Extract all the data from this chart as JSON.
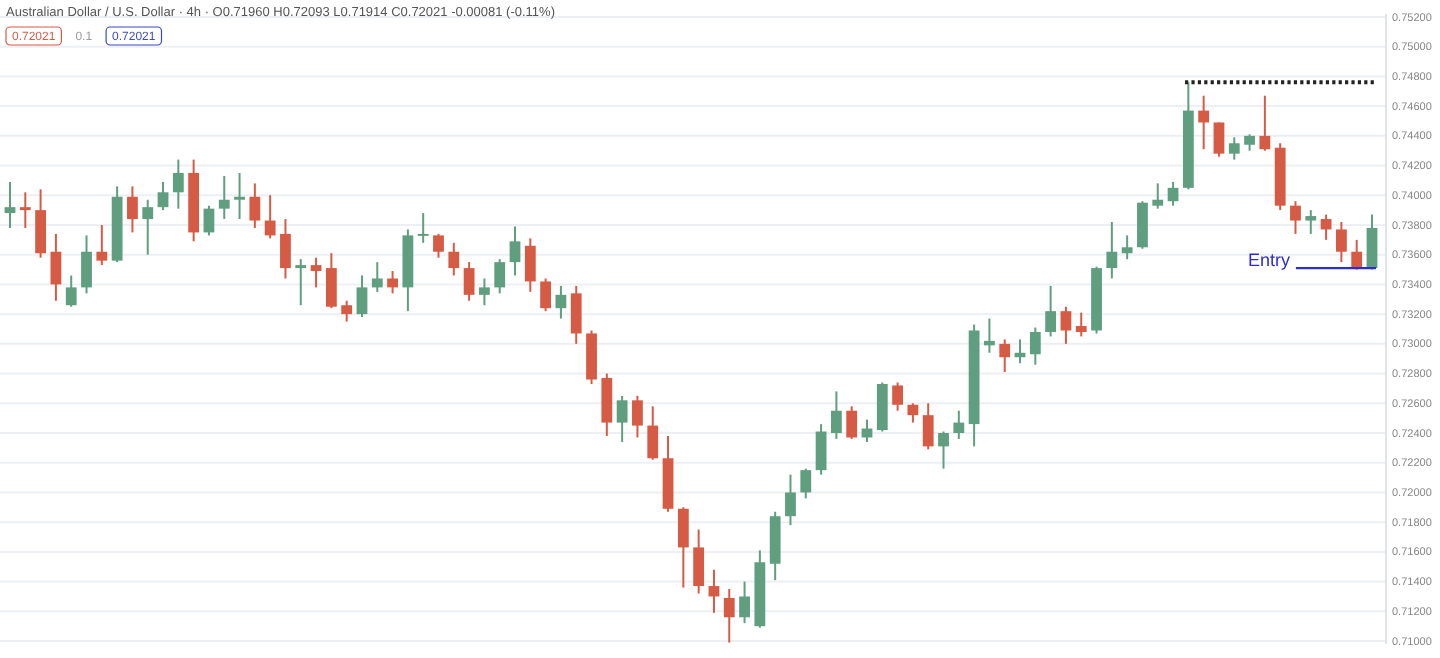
{
  "chart_data": {
    "type": "candlestick",
    "title": "Australian Dollar / U.S. Dollar · 4h · O0.71960 H0.72093 L0.71914 C0.72021 -0.00081 (-0.11%)",
    "annotations": [
      "0.72021",
      "0.1",
      "0.72021"
    ],
    "categories": [
      null,
      null,
      null,
      null,
      null,
      null,
      null,
      null,
      null,
      null,
      null,
      null,
      null,
      null,
      null,
      null,
      null,
      null,
      null,
      null,
      null,
      null,
      null,
      null,
      null,
      null,
      null,
      null,
      null,
      null,
      null,
      null,
      null,
      null,
      null,
      null,
      null,
      null,
      null,
      null,
      null,
      null,
      null,
      null,
      null,
      null,
      null,
      null,
      null,
      null,
      null,
      null,
      null,
      null,
      null,
      null,
      null,
      null,
      null,
      null,
      null,
      null,
      null,
      null,
      null,
      null,
      null,
      null,
      null,
      null,
      null,
      null,
      null,
      null,
      null,
      null,
      null,
      null,
      null,
      null,
      null,
      null,
      null,
      null,
      null,
      null,
      null,
      null,
      null,
      null
    ],
    "ohlc": [
      [
        0.7388,
        0.7409,
        0.7378,
        0.7392
      ],
      [
        0.7392,
        0.7402,
        0.7378,
        0.739
      ],
      [
        0.739,
        0.7404,
        0.7358,
        0.7361
      ],
      [
        0.7362,
        0.7374,
        0.7329,
        0.734
      ],
      [
        0.7326,
        0.7346,
        0.7325,
        0.7338
      ],
      [
        0.7338,
        0.7373,
        0.7334,
        0.7362
      ],
      [
        0.7362,
        0.738,
        0.7353,
        0.7356
      ],
      [
        0.7356,
        0.7406,
        0.7355,
        0.7399
      ],
      [
        0.7399,
        0.7406,
        0.7375,
        0.7384
      ],
      [
        0.7384,
        0.7397,
        0.736,
        0.7392
      ],
      [
        0.7392,
        0.7409,
        0.739,
        0.7402
      ],
      [
        0.7402,
        0.7424,
        0.7391,
        0.7415
      ],
      [
        0.7415,
        0.7424,
        0.7369,
        0.7375
      ],
      [
        0.7375,
        0.7393,
        0.7373,
        0.7391
      ],
      [
        0.7391,
        0.7413,
        0.7384,
        0.7397
      ],
      [
        0.7397,
        0.7415,
        0.7384,
        0.7399
      ],
      [
        0.7399,
        0.7408,
        0.7378,
        0.7383
      ],
      [
        0.7383,
        0.74,
        0.7371,
        0.7373
      ],
      [
        0.7374,
        0.7384,
        0.7344,
        0.7351
      ],
      [
        0.7351,
        0.7357,
        0.7326,
        0.7353
      ],
      [
        0.7353,
        0.7358,
        0.7338,
        0.7349
      ],
      [
        0.7351,
        0.7361,
        0.7324,
        0.7325
      ],
      [
        0.7326,
        0.7329,
        0.7315,
        0.732
      ],
      [
        0.732,
        0.7346,
        0.7318,
        0.7338
      ],
      [
        0.7338,
        0.7355,
        0.7335,
        0.7344
      ],
      [
        0.7344,
        0.7349,
        0.7334,
        0.7338
      ],
      [
        0.7338,
        0.7377,
        0.7322,
        0.7373
      ],
      [
        0.7373,
        0.7388,
        0.7368,
        0.7374
      ],
      [
        0.7373,
        0.7374,
        0.7358,
        0.7362
      ],
      [
        0.7362,
        0.7368,
        0.7346,
        0.7351
      ],
      [
        0.7351,
        0.7355,
        0.7329,
        0.7333
      ],
      [
        0.7333,
        0.7344,
        0.7326,
        0.7338
      ],
      [
        0.7338,
        0.7357,
        0.7334,
        0.7355
      ],
      [
        0.7355,
        0.7379,
        0.7346,
        0.7369
      ],
      [
        0.7366,
        0.7371,
        0.7335,
        0.7342
      ],
      [
        0.7342,
        0.7344,
        0.7322,
        0.7324
      ],
      [
        0.7324,
        0.7339,
        0.7317,
        0.7333
      ],
      [
        0.7334,
        0.7339,
        0.73,
        0.7307
      ],
      [
        0.7307,
        0.7309,
        0.7273,
        0.7276
      ],
      [
        0.7277,
        0.728,
        0.7238,
        0.7247
      ],
      [
        0.7247,
        0.7265,
        0.7234,
        0.7262
      ],
      [
        0.7262,
        0.7265,
        0.7237,
        0.7245
      ],
      [
        0.7245,
        0.7258,
        0.7222,
        0.7223
      ],
      [
        0.7223,
        0.7238,
        0.7187,
        0.7189
      ],
      [
        0.7189,
        0.719,
        0.7136,
        0.7163
      ],
      [
        0.7163,
        0.7175,
        0.7132,
        0.7137
      ],
      [
        0.7137,
        0.7148,
        0.7119,
        0.713
      ],
      [
        0.7129,
        0.7135,
        0.7099,
        0.7116
      ],
      [
        0.7116,
        0.714,
        0.7112,
        0.713
      ],
      [
        0.711,
        0.7161,
        0.7109,
        0.7153
      ],
      [
        0.7152,
        0.7187,
        0.7141,
        0.7184
      ],
      [
        0.7184,
        0.7212,
        0.7178,
        0.72
      ],
      [
        0.72,
        0.7216,
        0.7196,
        0.7215
      ],
      [
        0.7215,
        0.7246,
        0.7212,
        0.7241
      ],
      [
        0.724,
        0.7268,
        0.7236,
        0.7255
      ],
      [
        0.7255,
        0.7258,
        0.7236,
        0.7237
      ],
      [
        0.7237,
        0.7249,
        0.7234,
        0.7243
      ],
      [
        0.7242,
        0.7274,
        0.7241,
        0.7273
      ],
      [
        0.7272,
        0.7274,
        0.7255,
        0.7259
      ],
      [
        0.7259,
        0.726,
        0.7247,
        0.7252
      ],
      [
        0.7252,
        0.726,
        0.7229,
        0.7231
      ],
      [
        0.7231,
        0.7241,
        0.7216,
        0.724
      ],
      [
        0.724,
        0.7255,
        0.7236,
        0.7247
      ],
      [
        0.7246,
        0.7313,
        0.7231,
        0.7309
      ],
      [
        0.7299,
        0.7317,
        0.7294,
        0.7302
      ],
      [
        0.73,
        0.7303,
        0.7281,
        0.7291
      ],
      [
        0.7291,
        0.7303,
        0.7287,
        0.7294
      ],
      [
        0.7293,
        0.7311,
        0.7286,
        0.7308
      ],
      [
        0.7308,
        0.7339,
        0.7305,
        0.7322
      ],
      [
        0.7322,
        0.7325,
        0.73,
        0.7309
      ],
      [
        0.7312,
        0.7321,
        0.7305,
        0.7308
      ],
      [
        0.7309,
        0.7352,
        0.7307,
        0.7351
      ],
      [
        0.7351,
        0.7382,
        0.7344,
        0.7362
      ],
      [
        0.7361,
        0.7373,
        0.7357,
        0.7365
      ],
      [
        0.7365,
        0.7396,
        0.7364,
        0.7395
      ],
      [
        0.7393,
        0.7408,
        0.7391,
        0.7397
      ],
      [
        0.7396,
        0.7409,
        0.7393,
        0.7405
      ],
      [
        0.7405,
        0.7476,
        0.7404,
        0.7457
      ],
      [
        0.7457,
        0.7467,
        0.7431,
        0.7449
      ],
      [
        0.7449,
        0.7449,
        0.7426,
        0.7428
      ],
      [
        0.7428,
        0.7439,
        0.7424,
        0.7435
      ],
      [
        0.7434,
        0.7441,
        0.743,
        0.744
      ],
      [
        0.744,
        0.7467,
        0.743,
        0.7431
      ],
      [
        0.7432,
        0.7435,
        0.739,
        0.7393
      ],
      [
        0.7393,
        0.7396,
        0.7374,
        0.7383
      ],
      [
        0.7383,
        0.739,
        0.7374,
        0.7386
      ],
      [
        0.7384,
        0.7387,
        0.737,
        0.7377
      ],
      [
        0.7377,
        0.7382,
        0.7355,
        0.7362
      ],
      [
        0.7362,
        0.737,
        0.735,
        0.7351
      ],
      [
        0.7351,
        0.7387,
        0.735,
        0.7378
      ]
    ],
    "colors": [
      "#5f9e7f",
      "#d65b45",
      "#d65b45",
      "#d65b45",
      "#5f9e7f",
      "#5f9e7f",
      "#d65b45",
      "#5f9e7f",
      "#d65b45",
      "#5f9e7f",
      "#5f9e7f",
      "#5f9e7f",
      "#d65b45",
      "#5f9e7f",
      "#5f9e7f",
      "#5f9e7f",
      "#d65b45",
      "#d65b45",
      "#d65b45",
      "#5f9e7f",
      "#d65b45",
      "#d65b45",
      "#d65b45",
      "#5f9e7f",
      "#5f9e7f",
      "#d65b45",
      "#5f9e7f",
      "#5f9e7f",
      "#d65b45",
      "#d65b45",
      "#d65b45",
      "#5f9e7f",
      "#5f9e7f",
      "#5f9e7f",
      "#d65b45",
      "#d65b45",
      "#5f9e7f",
      "#d65b45",
      "#d65b45",
      "#d65b45",
      "#5f9e7f",
      "#d65b45",
      "#d65b45",
      "#d65b45",
      "#d65b45",
      "#d65b45",
      "#d65b45",
      "#d65b45",
      "#5f9e7f",
      "#5f9e7f",
      "#5f9e7f",
      "#5f9e7f",
      "#5f9e7f",
      "#5f9e7f",
      "#5f9e7f",
      "#d65b45",
      "#5f9e7f",
      "#5f9e7f",
      "#d65b45",
      "#d65b45",
      "#d65b45",
      "#5f9e7f",
      "#5f9e7f",
      "#5f9e7f",
      "#5f9e7f",
      "#d65b45",
      "#5f9e7f",
      "#5f9e7f",
      "#5f9e7f",
      "#d65b45",
      "#d65b45",
      "#5f9e7f",
      "#5f9e7f",
      "#5f9e7f",
      "#5f9e7f",
      "#5f9e7f",
      "#5f9e7f",
      "#5f9e7f",
      "#d65b45",
      "#d65b45",
      "#5f9e7f",
      "#5f9e7f",
      "#d65b45",
      "#d65b45",
      "#d65b45",
      "#5f9e7f",
      "#d65b45",
      "#d65b45",
      "#d65b45",
      "#5f9e7f"
    ],
    "ylim": [
      0.7098,
      0.7522
    ],
    "yticks": [
      {
        "value": 0.752,
        "label": "0.75200"
      },
      {
        "value": 0.75,
        "label": "0.75000"
      },
      {
        "value": 0.748,
        "label": "0.74800"
      },
      {
        "value": 0.746,
        "label": "0.74600"
      },
      {
        "value": 0.744,
        "label": "0.74400"
      },
      {
        "value": 0.742,
        "label": "0.74200"
      },
      {
        "value": 0.74,
        "label": "0.74000"
      },
      {
        "value": 0.738,
        "label": "0.73800"
      },
      {
        "value": 0.736,
        "label": "0.73600"
      },
      {
        "value": 0.734,
        "label": "0.73400"
      },
      {
        "value": 0.732,
        "label": "0.73200"
      },
      {
        "value": 0.73,
        "label": "0.73000"
      },
      {
        "value": 0.728,
        "label": "0.72800"
      },
      {
        "value": 0.726,
        "label": "0.72600"
      },
      {
        "value": 0.724,
        "label": "0.72400"
      },
      {
        "value": 0.722,
        "label": "0.72200"
      },
      {
        "value": 0.72,
        "label": "0.72000"
      },
      {
        "value": 0.718,
        "label": "0.71800"
      },
      {
        "value": 0.716,
        "label": "0.71600"
      },
      {
        "value": 0.714,
        "label": "0.71400"
      },
      {
        "value": 0.712,
        "label": "0.71200"
      },
      {
        "value": 0.71,
        "label": "0.71000"
      }
    ],
    "grid": "y",
    "ref_lines": [
      {
        "axis": "y",
        "value": 0.7476,
        "label": null,
        "color": "#222222",
        "line_style": "dotted"
      },
      {
        "axis": "y",
        "value": 0.7351,
        "label": "Entry",
        "color": "#2d2dd0",
        "line_style": "solid"
      }
    ]
  }
}
